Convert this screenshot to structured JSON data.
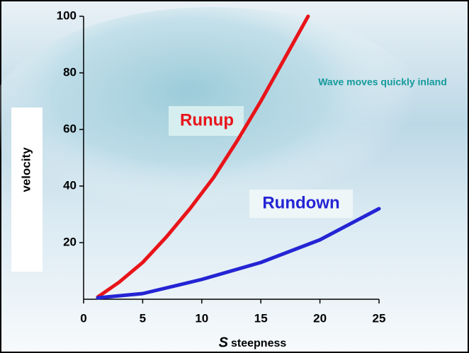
{
  "chart_data": {
    "type": "line",
    "xlabel_symbol": "S",
    "xlabel": "steepness",
    "ylabel": "velocity",
    "annotation": "Wave moves quickly inland",
    "xlim": [
      0,
      25
    ],
    "ylim": [
      0,
      100
    ],
    "xticks": [
      0,
      5,
      10,
      15,
      20,
      25
    ],
    "yticks": [
      20,
      40,
      60,
      80,
      100
    ],
    "series": [
      {
        "name": "Runup",
        "color": "#e8141a",
        "x": [
          1.2,
          3,
          5,
          7,
          9,
          11,
          13,
          15,
          17,
          19
        ],
        "values": [
          0.8,
          6,
          13,
          22,
          32,
          43,
          56,
          70,
          85,
          100
        ]
      },
      {
        "name": "Rundown",
        "color": "#2424d4",
        "x": [
          1.2,
          5,
          10,
          15,
          20,
          25
        ],
        "values": [
          0.5,
          2,
          7,
          13,
          21,
          32
        ]
      }
    ]
  }
}
